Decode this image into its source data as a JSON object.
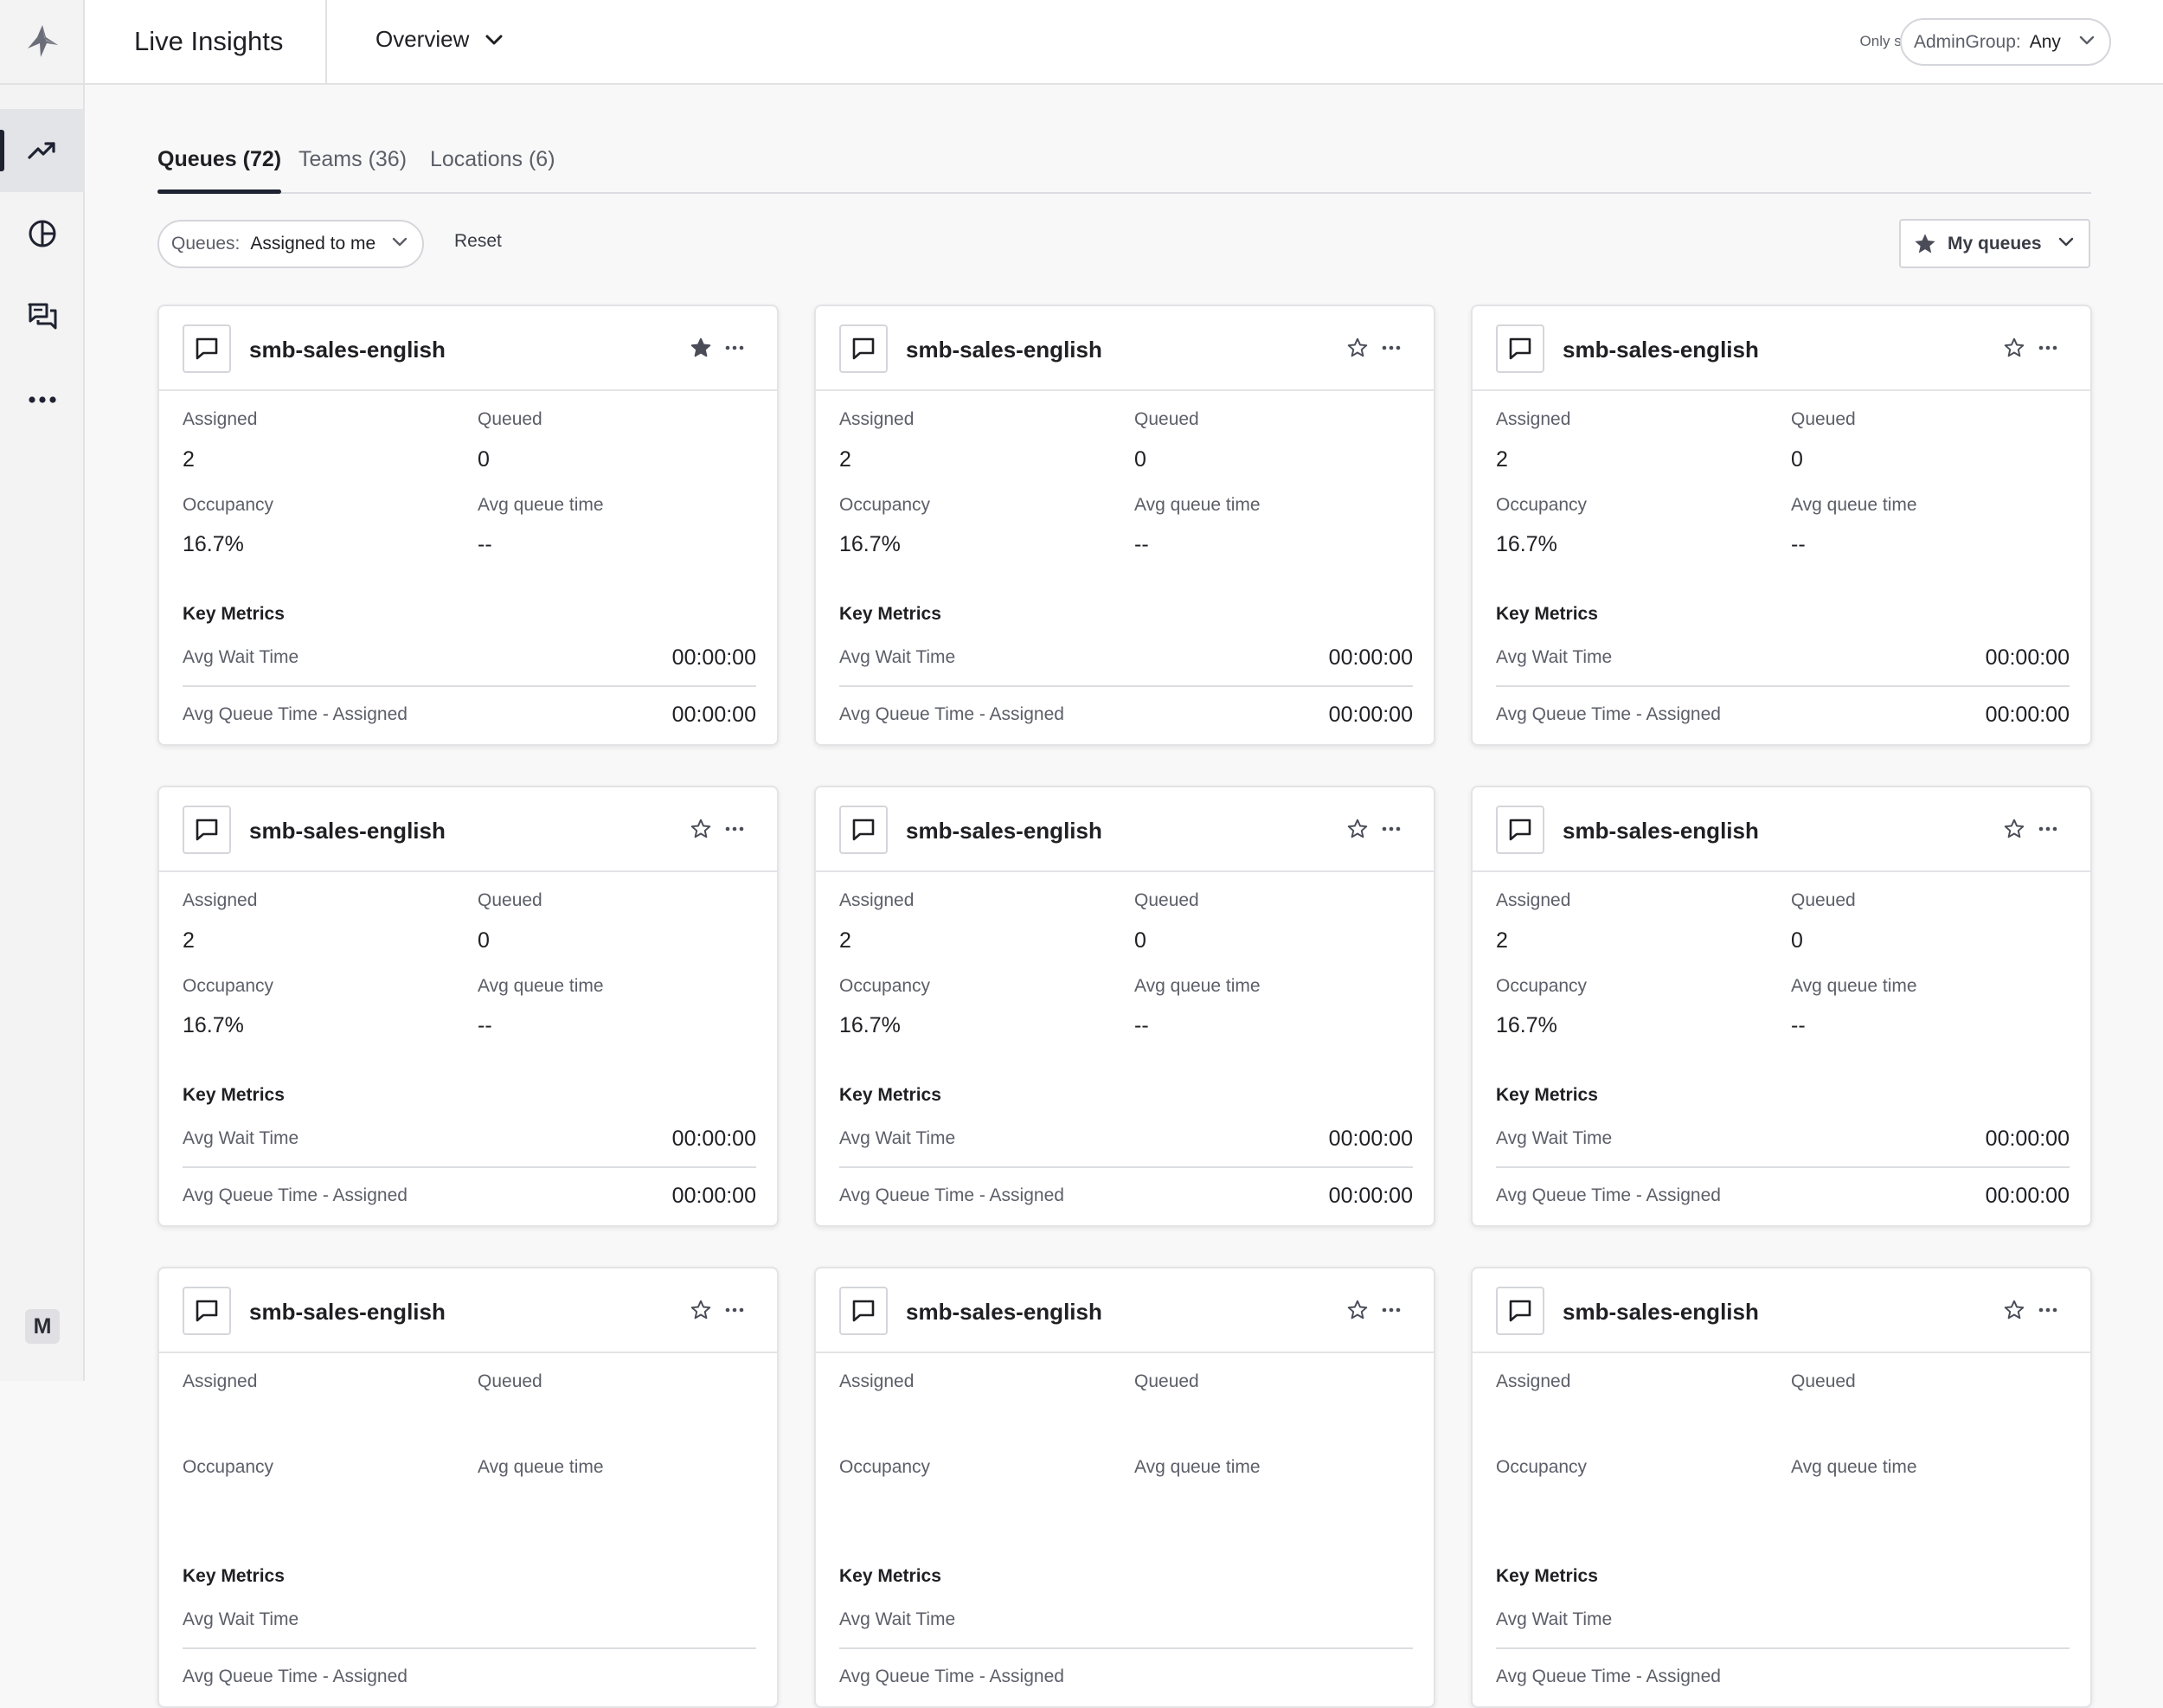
{
  "header": {
    "app_title": "Live Insights",
    "view_select": "Overview",
    "filter_caption": "Only show data for:",
    "filter_label": "AdminGroup:",
    "filter_value": "Any"
  },
  "sidebar": {
    "items": [
      "trending-up-icon",
      "pie-chart-icon",
      "chat-bubbles-icon",
      "more-icon"
    ],
    "avatar_initial": "M"
  },
  "tabs": [
    {
      "label": "Queues (72)",
      "active": true
    },
    {
      "label": "Teams (36)",
      "active": false
    },
    {
      "label": "Locations (6)",
      "active": false
    }
  ],
  "toolbar": {
    "queue_filter_label": "Queues:",
    "queue_filter_value": "Assigned to me",
    "reset_label": "Reset",
    "my_queues_label": "My queues"
  },
  "card_labels": {
    "assigned": "Assigned",
    "queued": "Queued",
    "occupancy": "Occupancy",
    "avg_queue_time": "Avg queue time",
    "key_metrics": "Key Metrics",
    "avg_wait_time": "Avg Wait Time",
    "avg_queue_time_assigned": "Avg Queue Time - Assigned"
  },
  "cards": [
    {
      "title": "smb-sales-english",
      "starred": true,
      "assigned": "2",
      "queued": "0",
      "occupancy": "16.7%",
      "avg_queue_time": "--",
      "avg_wait_time": "00:00:00",
      "avg_queue_time_assigned": "00:00:00"
    },
    {
      "title": "smb-sales-english",
      "starred": false,
      "assigned": "2",
      "queued": "0",
      "occupancy": "16.7%",
      "avg_queue_time": "--",
      "avg_wait_time": "00:00:00",
      "avg_queue_time_assigned": "00:00:00"
    },
    {
      "title": "smb-sales-english",
      "starred": false,
      "assigned": "2",
      "queued": "0",
      "occupancy": "16.7%",
      "avg_queue_time": "--",
      "avg_wait_time": "00:00:00",
      "avg_queue_time_assigned": "00:00:00"
    },
    {
      "title": "smb-sales-english",
      "starred": false,
      "assigned": "2",
      "queued": "0",
      "occupancy": "16.7%",
      "avg_queue_time": "--",
      "avg_wait_time": "00:00:00",
      "avg_queue_time_assigned": "00:00:00"
    },
    {
      "title": "smb-sales-english",
      "starred": false,
      "assigned": "2",
      "queued": "0",
      "occupancy": "16.7%",
      "avg_queue_time": "--",
      "avg_wait_time": "00:00:00",
      "avg_queue_time_assigned": "00:00:00"
    },
    {
      "title": "smb-sales-english",
      "starred": false,
      "assigned": "2",
      "queued": "0",
      "occupancy": "16.7%",
      "avg_queue_time": "--",
      "avg_wait_time": "00:00:00",
      "avg_queue_time_assigned": "00:00:00"
    },
    {
      "title": "smb-sales-english",
      "starred": false,
      "assigned": "",
      "queued": "",
      "occupancy": "",
      "avg_queue_time": "",
      "avg_wait_time": "",
      "avg_queue_time_assigned": ""
    },
    {
      "title": "smb-sales-english",
      "starred": false,
      "assigned": "",
      "queued": "",
      "occupancy": "",
      "avg_queue_time": "",
      "avg_wait_time": "",
      "avg_queue_time_assigned": ""
    },
    {
      "title": "smb-sales-english",
      "starred": false,
      "assigned": "",
      "queued": "",
      "occupancy": "",
      "avg_queue_time": "",
      "avg_wait_time": "",
      "avg_queue_time_assigned": ""
    }
  ]
}
